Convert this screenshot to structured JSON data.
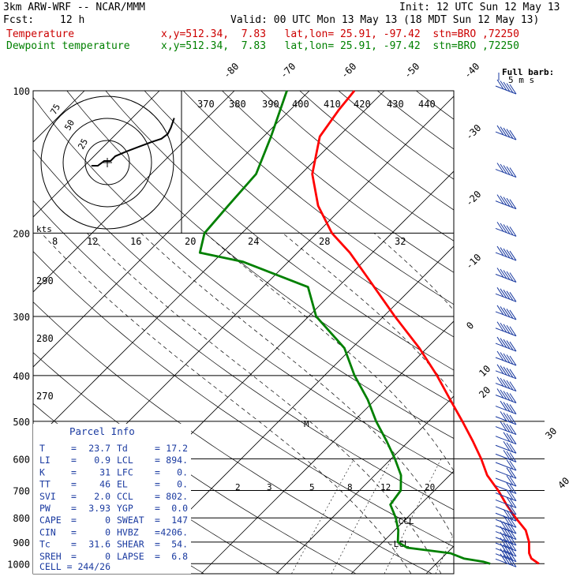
{
  "header": {
    "model": "3km ARW-WRF -- NCAR/MMM",
    "init": "Init: 12 UTC Sun 12 May 13",
    "fcst_label": "Fcst:",
    "fcst_value": "12 h",
    "valid": "Valid: 00 UTC Mon 13 May 13 (18 MDT Sun 12 May 13)",
    "temperature_label": "Temperature",
    "temperature_info": "x,y=512.34,  7.83   lat,lon= 25.91, -97.42  stn=BRO ,72250",
    "dewpoint_label": "Dewpoint temperature",
    "dewpoint_info": "x,y=512.34,  7.83   lat,lon= 25.91, -97.42  stn=BRO ,72250"
  },
  "colors": {
    "temperature": "#ff0000",
    "dewpoint": "#008000",
    "header_temperature": "#cc0000",
    "header_dewpoint": "#008000",
    "parcel_text": "#1a3aa0",
    "wind_barbs": "#1a3aa0",
    "hodograph_trace": "#000000"
  },
  "chart_data": {
    "type": "skew-t",
    "pressure_labels": [
      "100",
      "200",
      "300",
      "400",
      "500",
      "600",
      "700",
      "800",
      "900",
      "1000"
    ],
    "pressure_levels": [
      100,
      200,
      300,
      400,
      500,
      600,
      700,
      800,
      900,
      1000
    ],
    "isotherm_top_labels": [
      "-80",
      "-70",
      "-60",
      "-50",
      "-40"
    ],
    "isotherm_right_labels": [
      "-30",
      "-20",
      "-10",
      "0",
      "10",
      "20",
      "30",
      "40"
    ],
    "theta_labels": [
      "370",
      "380",
      "390",
      "400",
      "410",
      "420",
      "430",
      "440"
    ],
    "theta_left_labels": [
      "290",
      "280",
      "270"
    ],
    "hodo_speed_labels": [
      "8",
      "12",
      "16",
      "20",
      "24",
      "28",
      "32"
    ],
    "mixing_ratio_labels": [
      "2",
      "3",
      "5",
      "8",
      "12",
      "20"
    ],
    "hodo_ring_labels": [
      "25",
      "50",
      "75"
    ],
    "hodo_units": "kts",
    "wind_legend": {
      "title": "Full barb:",
      "value": "5 m s"
    },
    "ccl_label": "CCL",
    "lcl_label": "LCL",
    "cell_marker": "M",
    "temperature": {
      "name": "Temperature",
      "points": [
        [
          1000,
          23.7
        ],
        [
          975,
          22.0
        ],
        [
          950,
          21.0
        ],
        [
          900,
          19.5
        ],
        [
          850,
          17.5
        ],
        [
          800,
          14.5
        ],
        [
          750,
          11.5
        ],
        [
          700,
          8.5
        ],
        [
          650,
          5.0
        ],
        [
          600,
          2.0
        ],
        [
          550,
          -1.5
        ],
        [
          500,
          -5.5
        ],
        [
          450,
          -10.0
        ],
        [
          400,
          -15.0
        ],
        [
          350,
          -21.0
        ],
        [
          300,
          -28.5
        ],
        [
          250,
          -37.0
        ],
        [
          220,
          -43.0
        ],
        [
          200,
          -48.0
        ],
        [
          175,
          -53.5
        ],
        [
          150,
          -58.5
        ],
        [
          125,
          -62.5
        ],
        [
          110,
          -63.5
        ],
        [
          100,
          -64.0
        ]
      ]
    },
    "dewpoint": {
      "name": "Dewpoint temperature",
      "points": [
        [
          1000,
          17.2
        ],
        [
          990,
          16.0
        ],
        [
          975,
          13.0
        ],
        [
          950,
          10.5
        ],
        [
          925,
          4.0
        ],
        [
          900,
          2.0
        ],
        [
          850,
          0.5
        ],
        [
          800,
          -1.5
        ],
        [
          750,
          -4.0
        ],
        [
          700,
          -4.5
        ],
        [
          650,
          -6.5
        ],
        [
          600,
          -9.5
        ],
        [
          550,
          -13.0
        ],
        [
          500,
          -17.0
        ],
        [
          450,
          -21.0
        ],
        [
          400,
          -26.0
        ],
        [
          350,
          -31.0
        ],
        [
          300,
          -39.0
        ],
        [
          260,
          -44.0
        ],
        [
          230,
          -56.0
        ],
        [
          220,
          -63.0
        ],
        [
          200,
          -65.0
        ],
        [
          175,
          -65.5
        ],
        [
          150,
          -66.0
        ],
        [
          125,
          -69.0
        ],
        [
          100,
          -73.0
        ]
      ]
    },
    "hodograph": {
      "rings": [
        25,
        50,
        75
      ],
      "trace_uv": [
        [
          -10,
          -2
        ],
        [
          -6,
          -2
        ],
        [
          -2,
          1
        ],
        [
          2,
          1
        ],
        [
          5,
          4
        ],
        [
          12,
          7
        ],
        [
          20,
          10
        ],
        [
          28,
          13
        ],
        [
          34,
          15
        ],
        [
          38,
          18
        ],
        [
          40,
          22
        ],
        [
          42,
          28
        ]
      ]
    },
    "wind_barbs": {
      "levels": [
        100,
        125,
        150,
        175,
        200,
        225,
        250,
        275,
        300,
        325,
        350,
        375,
        400,
        425,
        450,
        475,
        500,
        525,
        550,
        575,
        600,
        625,
        650,
        675,
        700,
        725,
        750,
        775,
        800,
        825,
        850,
        875,
        900,
        925,
        950,
        975,
        1000
      ],
      "speed_ms": [
        25,
        30,
        35,
        35,
        35,
        40,
        40,
        40,
        40,
        35,
        35,
        30,
        30,
        25,
        25,
        20,
        20,
        20,
        15,
        15,
        15,
        10,
        10,
        10,
        10,
        10,
        12,
        12,
        15,
        15,
        18,
        18,
        20,
        20,
        20,
        20,
        18
      ]
    }
  },
  "parcel_info": {
    "title": "Parcel Info",
    "rows": [
      {
        "l1": "T",
        "v1": "23.7",
        "l2": "Td",
        "v2": "17.2"
      },
      {
        "l1": "LI",
        "v1": "0.9",
        "l2": "LCL",
        "v2": "894."
      },
      {
        "l1": "K",
        "v1": "31",
        "l2": "LFC",
        "v2": "0."
      },
      {
        "l1": "TT",
        "v1": "46",
        "l2": "EL",
        "v2": "0."
      },
      {
        "l1": "SVI",
        "v1": "2.0",
        "l2": "CCL",
        "v2": "802."
      },
      {
        "l1": "PW",
        "v1": "3.93",
        "l2": "YGP",
        "v2": "0.0"
      },
      {
        "l1": "CAPE",
        "v1": "0",
        "l2": "SWEAT",
        "v2": "147"
      },
      {
        "l1": "CIN",
        "v1": "0",
        "l2": "HVBZ",
        "v2": "4206."
      },
      {
        "l1": "Tc",
        "v1": "31.6",
        "l2": "SHEAR",
        "v2": "54."
      },
      {
        "l1": "SREH",
        "v1": "0",
        "l2": "LAPSE",
        "v2": "6.8"
      }
    ],
    "cell": "CELL = 244/26"
  }
}
